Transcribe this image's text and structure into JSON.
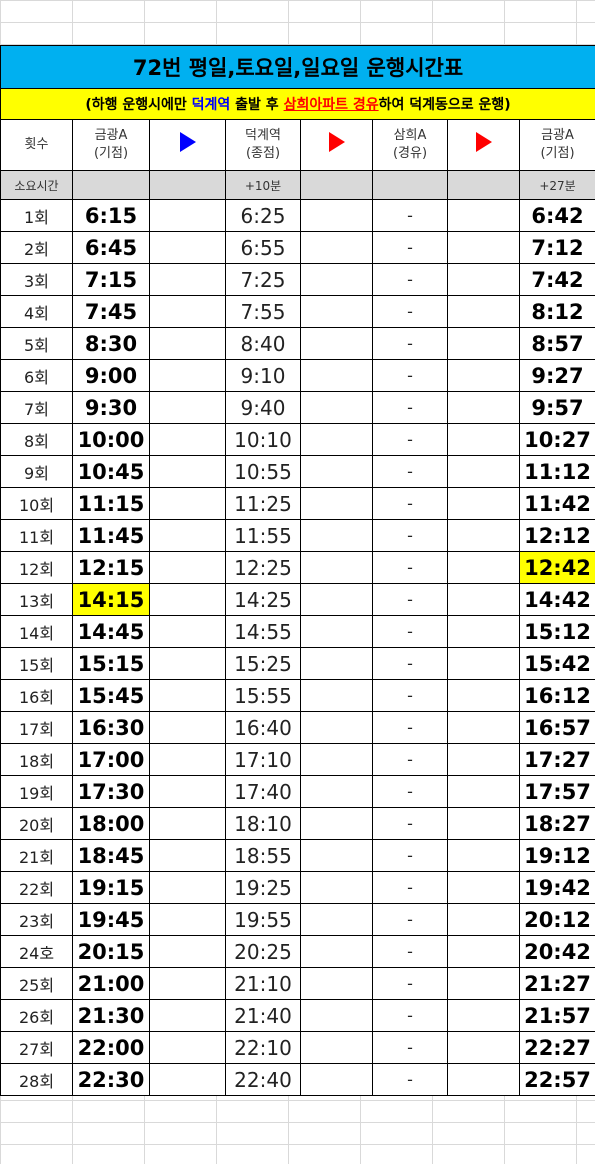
{
  "title": "72번 평일,토요일,일요일 운행시간표",
  "note": {
    "part1": "(하행 운행시에만 ",
    "part2": "덕계역",
    "part3": " 출발 후 ",
    "part4": "삼희아파트 경유",
    "part5": "하여 덕계동으로 운행)"
  },
  "headers": {
    "count": "횟수",
    "stop1_name": "금광A",
    "stop1_sub": "(기점)",
    "stop2_name": "덕계역",
    "stop2_sub": "(종점)",
    "stop3_name": "삼희A",
    "stop3_sub": "(경유)",
    "stop4_name": "금광A",
    "stop4_sub": "(기점)"
  },
  "duration": {
    "label": "소요시간",
    "stop2": "+10분",
    "stop4": "+27분"
  },
  "colors": {
    "title_bg": "#00b0f0",
    "note_bg": "#ffff00",
    "highlight": "#ffff00",
    "arrow1": "#0000ff",
    "arrow2": "#ff0000"
  },
  "rows": [
    {
      "n": "1회",
      "a": "6:15",
      "b": "6:25",
      "c": "-",
      "d": "6:42"
    },
    {
      "n": "2회",
      "a": "6:45",
      "b": "6:55",
      "c": "-",
      "d": "7:12"
    },
    {
      "n": "3회",
      "a": "7:15",
      "b": "7:25",
      "c": "-",
      "d": "7:42"
    },
    {
      "n": "4회",
      "a": "7:45",
      "b": "7:55",
      "c": "-",
      "d": "8:12"
    },
    {
      "n": "5회",
      "a": "8:30",
      "b": "8:40",
      "c": "-",
      "d": "8:57"
    },
    {
      "n": "6회",
      "a": "9:00",
      "b": "9:10",
      "c": "-",
      "d": "9:27"
    },
    {
      "n": "7회",
      "a": "9:30",
      "b": "9:40",
      "c": "-",
      "d": "9:57"
    },
    {
      "n": "8회",
      "a": "10:00",
      "b": "10:10",
      "c": "-",
      "d": "10:27"
    },
    {
      "n": "9회",
      "a": "10:45",
      "b": "10:55",
      "c": "-",
      "d": "11:12"
    },
    {
      "n": "10회",
      "a": "11:15",
      "b": "11:25",
      "c": "-",
      "d": "11:42"
    },
    {
      "n": "11회",
      "a": "11:45",
      "b": "11:55",
      "c": "-",
      "d": "12:12"
    },
    {
      "n": "12회",
      "a": "12:15",
      "b": "12:25",
      "c": "-",
      "d": "12:42",
      "hl_d": true
    },
    {
      "n": "13회",
      "a": "14:15",
      "b": "14:25",
      "c": "-",
      "d": "14:42",
      "hl_a": true
    },
    {
      "n": "14회",
      "a": "14:45",
      "b": "14:55",
      "c": "-",
      "d": "15:12"
    },
    {
      "n": "15회",
      "a": "15:15",
      "b": "15:25",
      "c": "-",
      "d": "15:42"
    },
    {
      "n": "16회",
      "a": "15:45",
      "b": "15:55",
      "c": "-",
      "d": "16:12"
    },
    {
      "n": "17회",
      "a": "16:30",
      "b": "16:40",
      "c": "-",
      "d": "16:57"
    },
    {
      "n": "18회",
      "a": "17:00",
      "b": "17:10",
      "c": "-",
      "d": "17:27"
    },
    {
      "n": "19회",
      "a": "17:30",
      "b": "17:40",
      "c": "-",
      "d": "17:57"
    },
    {
      "n": "20회",
      "a": "18:00",
      "b": "18:10",
      "c": "-",
      "d": "18:27"
    },
    {
      "n": "21회",
      "a": "18:45",
      "b": "18:55",
      "c": "-",
      "d": "19:12"
    },
    {
      "n": "22회",
      "a": "19:15",
      "b": "19:25",
      "c": "-",
      "d": "19:42"
    },
    {
      "n": "23회",
      "a": "19:45",
      "b": "19:55",
      "c": "-",
      "d": "20:12"
    },
    {
      "n": "24호",
      "a": "20:15",
      "b": "20:25",
      "c": "-",
      "d": "20:42"
    },
    {
      "n": "25회",
      "a": "21:00",
      "b": "21:10",
      "c": "-",
      "d": "21:27"
    },
    {
      "n": "26회",
      "a": "21:30",
      "b": "21:40",
      "c": "-",
      "d": "21:57"
    },
    {
      "n": "27회",
      "a": "22:00",
      "b": "22:10",
      "c": "-",
      "d": "22:27"
    },
    {
      "n": "28회",
      "a": "22:30",
      "b": "22:40",
      "c": "-",
      "d": "22:57"
    }
  ]
}
